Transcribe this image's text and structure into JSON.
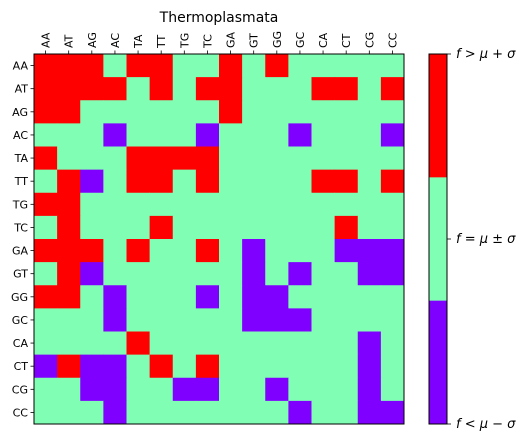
{
  "chart_data": {
    "type": "heatmap",
    "title": "Thermoplasmata",
    "x_labels": [
      "AA",
      "AT",
      "AG",
      "AC",
      "TA",
      "TT",
      "TG",
      "TC",
      "GA",
      "GT",
      "GG",
      "GC",
      "CA",
      "CT",
      "CG",
      "CC"
    ],
    "y_labels": [
      "AA",
      "AT",
      "AG",
      "AC",
      "TA",
      "TT",
      "TG",
      "TC",
      "GA",
      "GT",
      "GG",
      "GC",
      "CA",
      "CT",
      "CG",
      "CC"
    ],
    "categories": {
      "0": "f < μ − σ",
      "1": "f = μ ± σ",
      "2": "f > μ + σ"
    },
    "colors": {
      "0": "#8000ff",
      "1": "#80ffb4",
      "2": "#ff0000"
    },
    "colorbar": {
      "labels": [
        "f > μ + σ",
        "f = μ ± σ",
        "f < μ − σ"
      ],
      "label_values": [
        2,
        1,
        0
      ]
    },
    "matrix": [
      [
        2,
        2,
        2,
        1,
        2,
        2,
        1,
        1,
        2,
        1,
        2,
        1,
        1,
        1,
        1,
        1
      ],
      [
        2,
        2,
        2,
        2,
        1,
        2,
        1,
        2,
        2,
        1,
        1,
        1,
        2,
        2,
        1,
        2
      ],
      [
        2,
        2,
        1,
        1,
        1,
        1,
        1,
        1,
        2,
        1,
        1,
        1,
        1,
        1,
        1,
        1
      ],
      [
        1,
        1,
        1,
        0,
        1,
        1,
        1,
        0,
        1,
        1,
        1,
        0,
        1,
        1,
        1,
        0
      ],
      [
        2,
        1,
        1,
        1,
        2,
        2,
        2,
        2,
        1,
        1,
        1,
        1,
        1,
        1,
        1,
        1
      ],
      [
        1,
        2,
        0,
        1,
        2,
        2,
        1,
        2,
        1,
        1,
        1,
        1,
        2,
        2,
        1,
        2
      ],
      [
        2,
        2,
        1,
        1,
        1,
        1,
        1,
        1,
        1,
        1,
        1,
        1,
        1,
        1,
        1,
        1
      ],
      [
        1,
        2,
        1,
        1,
        1,
        2,
        1,
        1,
        1,
        1,
        1,
        1,
        1,
        2,
        1,
        1
      ],
      [
        2,
        2,
        2,
        1,
        2,
        1,
        1,
        2,
        1,
        0,
        1,
        1,
        1,
        0,
        0,
        0
      ],
      [
        1,
        2,
        0,
        1,
        1,
        1,
        1,
        1,
        1,
        0,
        1,
        0,
        1,
        1,
        0,
        0
      ],
      [
        2,
        2,
        1,
        0,
        1,
        1,
        1,
        0,
        1,
        0,
        0,
        1,
        1,
        1,
        1,
        1
      ],
      [
        1,
        1,
        1,
        0,
        1,
        1,
        1,
        1,
        1,
        0,
        0,
        0,
        1,
        1,
        1,
        1
      ],
      [
        1,
        1,
        1,
        1,
        2,
        1,
        1,
        1,
        1,
        1,
        1,
        1,
        1,
        1,
        0,
        1
      ],
      [
        0,
        2,
        0,
        0,
        1,
        2,
        1,
        2,
        1,
        1,
        1,
        1,
        1,
        1,
        0,
        1
      ],
      [
        1,
        1,
        0,
        0,
        1,
        1,
        0,
        0,
        1,
        1,
        0,
        1,
        1,
        1,
        0,
        1
      ],
      [
        1,
        1,
        1,
        0,
        1,
        1,
        1,
        1,
        1,
        1,
        1,
        0,
        1,
        1,
        0,
        0
      ]
    ]
  }
}
